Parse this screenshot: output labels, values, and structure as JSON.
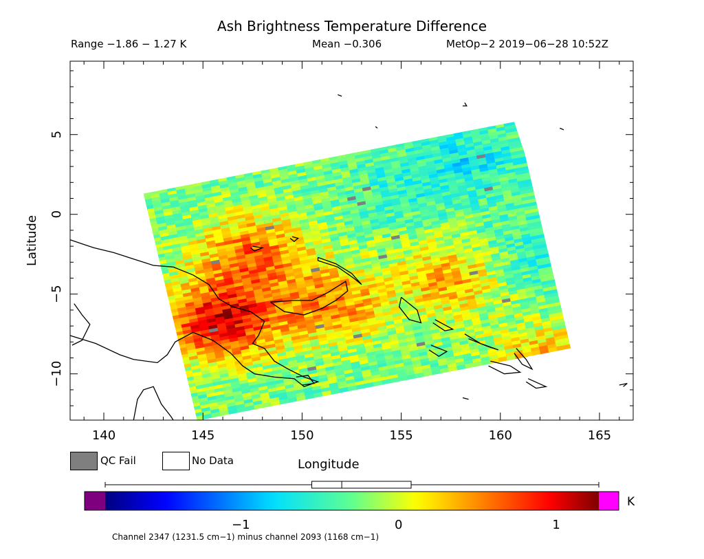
{
  "chart_data": {
    "type": "heatmap",
    "title": "Ash Brightness Temperature Difference",
    "range_text": "Range −1.86 − 1.27 K",
    "mean_text": "Mean −0.306",
    "satellite_text": "MetOp−2 2019−06−28 10:52Z",
    "xlabel": "Longitude",
    "ylabel": "Latitude",
    "xlim": [
      138.3,
      166.7
    ],
    "ylim": [
      -12.9,
      9.6
    ],
    "xticks": [
      140,
      145,
      150,
      155,
      160,
      165
    ],
    "xtick_labels": [
      "140",
      "145",
      "150",
      "155",
      "160",
      "165"
    ],
    "yticks": [
      5,
      0,
      -5,
      -10
    ],
    "ytick_labels": [
      "5",
      "0",
      "−5",
      "−10"
    ],
    "swath_corners": [
      [
        142.0,
        1.3
      ],
      [
        160.7,
        5.8
      ],
      [
        165.7,
        -12.9
      ],
      [
        144.7,
        -12.9
      ]
    ],
    "value_range": [
      -1.86,
      1.27
    ],
    "mean": -0.306,
    "colorbar": {
      "unit": "K",
      "min": -1.86,
      "max": 1.27,
      "ticks": [
        -1,
        0,
        1
      ],
      "tick_labels": [
        "−1",
        "0",
        "1"
      ],
      "under_color": "#7f007f",
      "over_color": "#ff00ff",
      "box_range": [
        -0.55,
        0.08
      ],
      "box_median": -0.36
    },
    "anomaly_regions": [
      {
        "lon": 146.0,
        "lat": -6.8,
        "value": 1.0
      },
      {
        "lon": 147.5,
        "lat": -2.5,
        "value": 0.55
      },
      {
        "lon": 151.5,
        "lat": -5.7,
        "value": 0.45
      },
      {
        "lon": 157.5,
        "lat": -4.0,
        "value": 0.35
      },
      {
        "lon": 162.5,
        "lat": -9.5,
        "value": 0.4
      },
      {
        "lon": 155.0,
        "lat": 1.5,
        "value": -0.55
      },
      {
        "lon": 158.5,
        "lat": 3.5,
        "value": -0.7
      },
      {
        "lon": 161.5,
        "lat": -2.5,
        "value": -0.6
      }
    ],
    "qc_fail_label": "QC Fail",
    "no_data_label": "No Data",
    "qc_fail_color": "#7f7f7f",
    "no_data_color": "#ffffff",
    "footnote": "Channel 2347 (1231.5 cm−1) minus channel 2093 (1168 cm−1)"
  }
}
